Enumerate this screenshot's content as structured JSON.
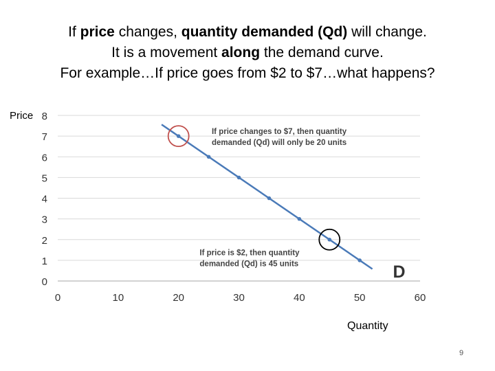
{
  "slide": {
    "title_lines": [
      [
        {
          "text": "If ",
          "bold": false
        },
        {
          "text": "price",
          "bold": true
        },
        {
          "text": " changes, ",
          "bold": false
        },
        {
          "text": "quantity demanded (Qd)",
          "bold": true
        },
        {
          "text": " will change.",
          "bold": false
        }
      ],
      [
        {
          "text": "It is a movement ",
          "bold": false
        },
        {
          "text": "along",
          "bold": true
        },
        {
          "text": " the demand curve.",
          "bold": false
        }
      ],
      [
        {
          "text": "For example…If price goes from $2 to $7…what happens?",
          "bold": false
        }
      ]
    ],
    "page_number": "9"
  },
  "chart_data": {
    "type": "line",
    "xlabel": "Quantity",
    "ylabel": "Price",
    "xlim": [
      0,
      60
    ],
    "ylim": [
      0,
      8
    ],
    "xticks": [
      0,
      10,
      20,
      30,
      40,
      50,
      60
    ],
    "yticks": [
      0,
      1,
      2,
      3,
      4,
      5,
      6,
      7,
      8
    ],
    "grid": "horizontal",
    "series": [
      {
        "name": "D",
        "color": "#4a7ab8",
        "points": [
          {
            "x": 20,
            "y": 7
          },
          {
            "x": 25,
            "y": 6
          },
          {
            "x": 30,
            "y": 5
          },
          {
            "x": 35,
            "y": 4
          },
          {
            "x": 40,
            "y": 3
          },
          {
            "x": 45,
            "y": 2
          },
          {
            "x": 50,
            "y": 1
          }
        ],
        "line_extent": {
          "from": {
            "x": 17.2,
            "y": 7.56
          },
          "to": {
            "x": 52.1,
            "y": 0.58
          }
        }
      }
    ],
    "curve_label": {
      "text": "D",
      "x": 55.5,
      "y": 0.5
    },
    "highlights": [
      {
        "x": 20,
        "y": 7,
        "color": "#c0504d"
      },
      {
        "x": 45,
        "y": 2,
        "color": "#000000"
      }
    ],
    "annotations": [
      {
        "lines": [
          "If price changes to $7, then quantity",
          "demanded (Qd) will only be 20 units"
        ],
        "x": 25.5,
        "y": 7.1
      },
      {
        "lines": [
          "If price is $2, then quantity",
          "demanded (Qd) is 45 units"
        ],
        "x": 23.5,
        "y": 1.25
      }
    ]
  }
}
